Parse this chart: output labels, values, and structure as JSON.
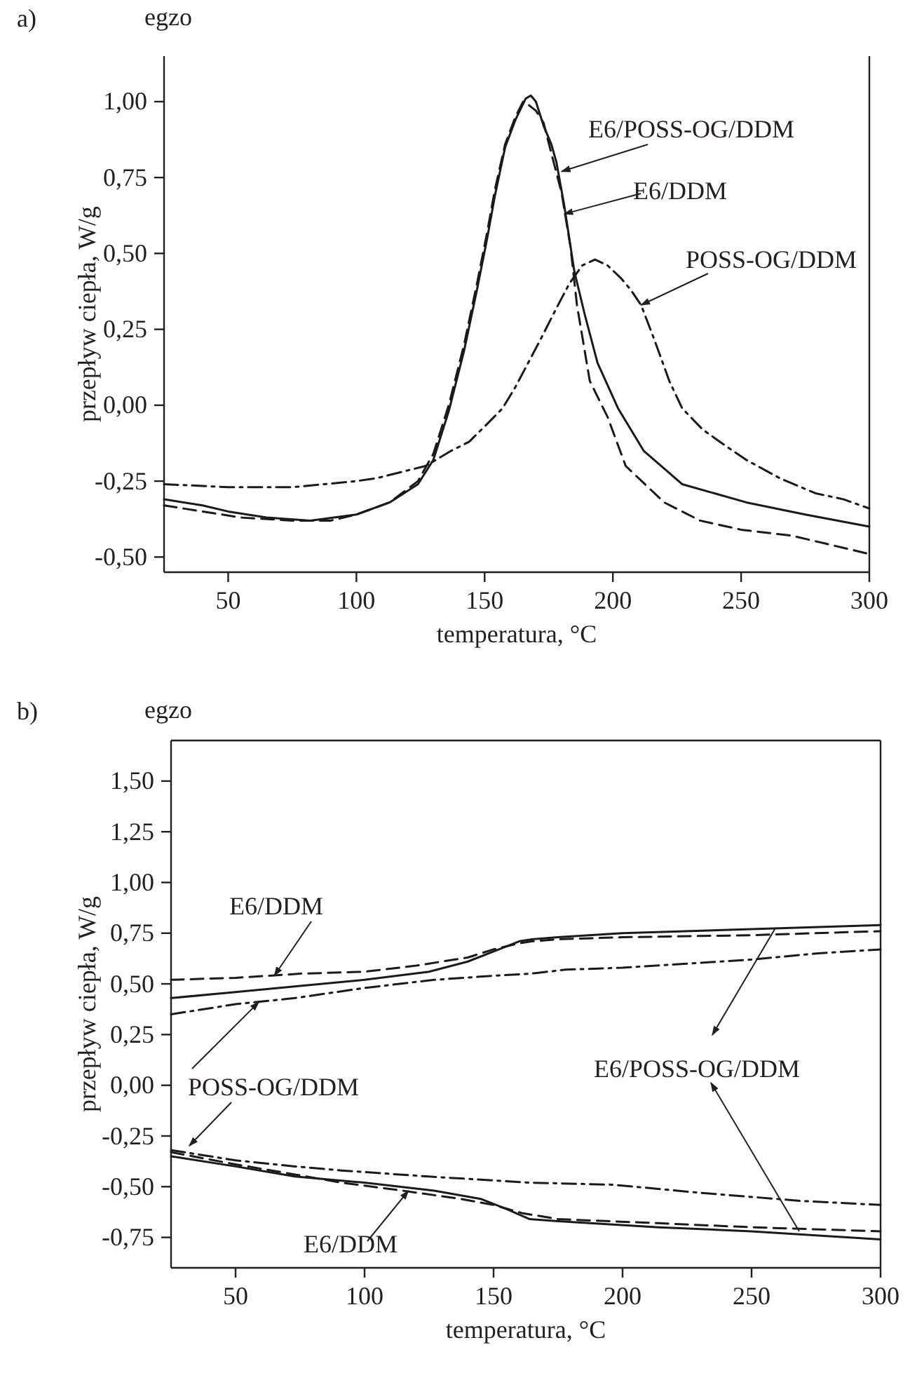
{
  "chart_data": [
    {
      "type": "line",
      "title": "a)",
      "xlabel": "temperatura, °C",
      "ylabel": "przepływ ciepła, W/g",
      "xlim": [
        25,
        300
      ],
      "xticks": [
        50,
        100,
        150,
        200,
        250,
        300
      ],
      "ylim": [
        -0.55,
        1.15
      ],
      "yticks": [
        {
          "value": -0.5,
          "label": "-0,50"
        },
        {
          "value": -0.25,
          "label": "-0,25"
        },
        {
          "value": 0,
          "label": "0,00"
        },
        {
          "value": 0.25,
          "label": "0,25"
        },
        {
          "value": 0.5,
          "label": "0,50"
        },
        {
          "value": 0.75,
          "label": "0,75"
        },
        {
          "value": 1,
          "label": "1,00"
        }
      ],
      "grid": false,
      "annotations": [
        "egzo",
        {
          "text": "E6/POSS-OG/DDM",
          "x": 180,
          "y": 0.77
        },
        {
          "text": "E6/DDM",
          "x": 181,
          "y": 0.63
        },
        {
          "text": "POSS-OG/DDM",
          "x": 211,
          "y": 0.33
        }
      ],
      "series": [
        {
          "color": "#1a1a1a",
          "line_style": "solid",
          "x": [
            25,
            40,
            50,
            65,
            82,
            100,
            113,
            124,
            130,
            136,
            142,
            147,
            151,
            154,
            158,
            162,
            166,
            168,
            170,
            173,
            176,
            178,
            181,
            183,
            185,
            189,
            194,
            202,
            212,
            227,
            252,
            275,
            300
          ],
          "values": [
            -0.31,
            -0.33,
            -0.35,
            -0.37,
            -0.38,
            -0.36,
            -0.32,
            -0.26,
            -0.18,
            -0.02,
            0.18,
            0.38,
            0.55,
            0.69,
            0.85,
            0.94,
            1.01,
            1.02,
            1.0,
            0.92,
            0.86,
            0.8,
            0.66,
            0.55,
            0.44,
            0.3,
            0.14,
            -0.01,
            -0.15,
            -0.26,
            -0.32,
            -0.36,
            -0.4
          ]
        },
        {
          "color": "#1a1a1a",
          "line_style": "dashed",
          "x": [
            25,
            40,
            55,
            75,
            90,
            100,
            113,
            124,
            130,
            136,
            142,
            147,
            151,
            154,
            158,
            162,
            165,
            167,
            170,
            173,
            176,
            180,
            183.5,
            186,
            191,
            198,
            205,
            220,
            234,
            250,
            270,
            300
          ],
          "values": [
            -0.33,
            -0.35,
            -0.37,
            -0.38,
            -0.38,
            -0.36,
            -0.32,
            -0.25,
            -0.16,
            0.0,
            0.2,
            0.4,
            0.57,
            0.71,
            0.86,
            0.95,
            1.0,
            0.99,
            0.97,
            0.93,
            0.83,
            0.7,
            0.52,
            0.33,
            0.08,
            -0.04,
            -0.2,
            -0.32,
            -0.38,
            -0.41,
            -0.43,
            -0.49
          ]
        },
        {
          "color": "#1a1a1a",
          "line_style": "dashdot",
          "x": [
            25,
            50,
            75,
            100,
            108,
            127,
            137,
            144,
            150,
            157,
            162,
            167,
            172,
            178,
            183,
            188,
            193,
            198,
            203,
            207,
            211,
            216,
            222,
            227,
            235,
            245,
            252,
            265,
            279,
            290,
            300
          ],
          "values": [
            -0.26,
            -0.27,
            -0.27,
            -0.25,
            -0.24,
            -0.2,
            -0.15,
            -0.12,
            -0.07,
            -0.01,
            0.06,
            0.14,
            0.22,
            0.32,
            0.4,
            0.46,
            0.48,
            0.46,
            0.42,
            0.38,
            0.33,
            0.22,
            0.08,
            -0.01,
            -0.08,
            -0.14,
            -0.18,
            -0.24,
            -0.29,
            -0.31,
            -0.34
          ]
        }
      ]
    },
    {
      "type": "line",
      "title": "b)",
      "xlabel": "temperatura, °C",
      "ylabel": "przepływ ciepła, W/g",
      "xlim": [
        25,
        300
      ],
      "xticks": [
        50,
        100,
        150,
        200,
        250,
        300
      ],
      "ylim": [
        -0.9,
        1.7
      ],
      "yticks": [
        {
          "value": -0.75,
          "label": "-0,75"
        },
        {
          "value": -0.5,
          "label": "-0,50"
        },
        {
          "value": -0.25,
          "label": "-0,25"
        },
        {
          "value": 0,
          "label": "0,00"
        },
        {
          "value": 0.25,
          "label": "0,25"
        },
        {
          "value": 0.5,
          "label": "0,50"
        },
        {
          "value": 0.75,
          "label": "0,75"
        },
        {
          "value": 1,
          "label": "1,00"
        },
        {
          "value": 1.25,
          "label": "1,25"
        },
        {
          "value": 1.5,
          "label": "1,50"
        }
      ],
      "grid": false,
      "annotations": [
        "egzo",
        {
          "text": "E6/DDM",
          "x": 65,
          "y": 0.54
        },
        {
          "text": "POSS-OG/DDM",
          "x": 59,
          "y": 0.41
        },
        {
          "text": "E6/DDM",
          "x": 117,
          "y": -0.52
        },
        {
          "text": "E6/POSS-OG/DDM",
          "x": 259,
          "y": 0.77
        }
      ],
      "series": [
        {
          "color": "#1a1a1a",
          "line_style": "solid",
          "x": [
            25,
            50,
            75,
            100,
            125,
            140,
            150,
            160,
            165,
            175,
            200,
            250,
            300
          ],
          "values": [
            0.43,
            0.46,
            0.49,
            0.52,
            0.56,
            0.61,
            0.66,
            0.71,
            0.72,
            0.73,
            0.75,
            0.77,
            0.79
          ]
        },
        {
          "color": "#1a1a1a",
          "line_style": "dashed",
          "x": [
            25,
            50,
            75,
            100,
            120,
            140,
            150,
            160,
            165,
            175,
            200,
            250,
            300
          ],
          "values": [
            0.52,
            0.53,
            0.55,
            0.56,
            0.59,
            0.63,
            0.67,
            0.7,
            0.71,
            0.72,
            0.73,
            0.74,
            0.76
          ]
        },
        {
          "color": "#1a1a1a",
          "line_style": "dashdot",
          "x": [
            25,
            50,
            73,
            100,
            127,
            150,
            164,
            178,
            200,
            225,
            250,
            275,
            300
          ],
          "values": [
            0.35,
            0.4,
            0.43,
            0.48,
            0.52,
            0.54,
            0.55,
            0.57,
            0.58,
            0.6,
            0.62,
            0.65,
            0.67
          ]
        },
        {
          "color": "#1a1a1a",
          "line_style": "dashdot",
          "x": [
            25,
            50,
            73,
            91,
            125,
            164,
            196,
            230,
            269,
            300
          ],
          "values": [
            -0.32,
            -0.37,
            -0.4,
            -0.42,
            -0.45,
            -0.48,
            -0.49,
            -0.53,
            -0.57,
            -0.59
          ]
        },
        {
          "color": "#1a1a1a",
          "line_style": "solid",
          "x": [
            25,
            50,
            73,
            100,
            127,
            145,
            155,
            164,
            175,
            214,
            250,
            300
          ],
          "values": [
            -0.35,
            -0.4,
            -0.45,
            -0.48,
            -0.52,
            -0.56,
            -0.61,
            -0.66,
            -0.67,
            -0.7,
            -0.72,
            -0.76
          ]
        },
        {
          "color": "#1a1a1a",
          "line_style": "dashed",
          "x": [
            25,
            50,
            73,
            91,
            115,
            137,
            150,
            161,
            175,
            214,
            250,
            300
          ],
          "values": [
            -0.33,
            -0.39,
            -0.44,
            -0.48,
            -0.52,
            -0.56,
            -0.59,
            -0.63,
            -0.66,
            -0.68,
            -0.7,
            -0.72
          ]
        }
      ]
    }
  ]
}
